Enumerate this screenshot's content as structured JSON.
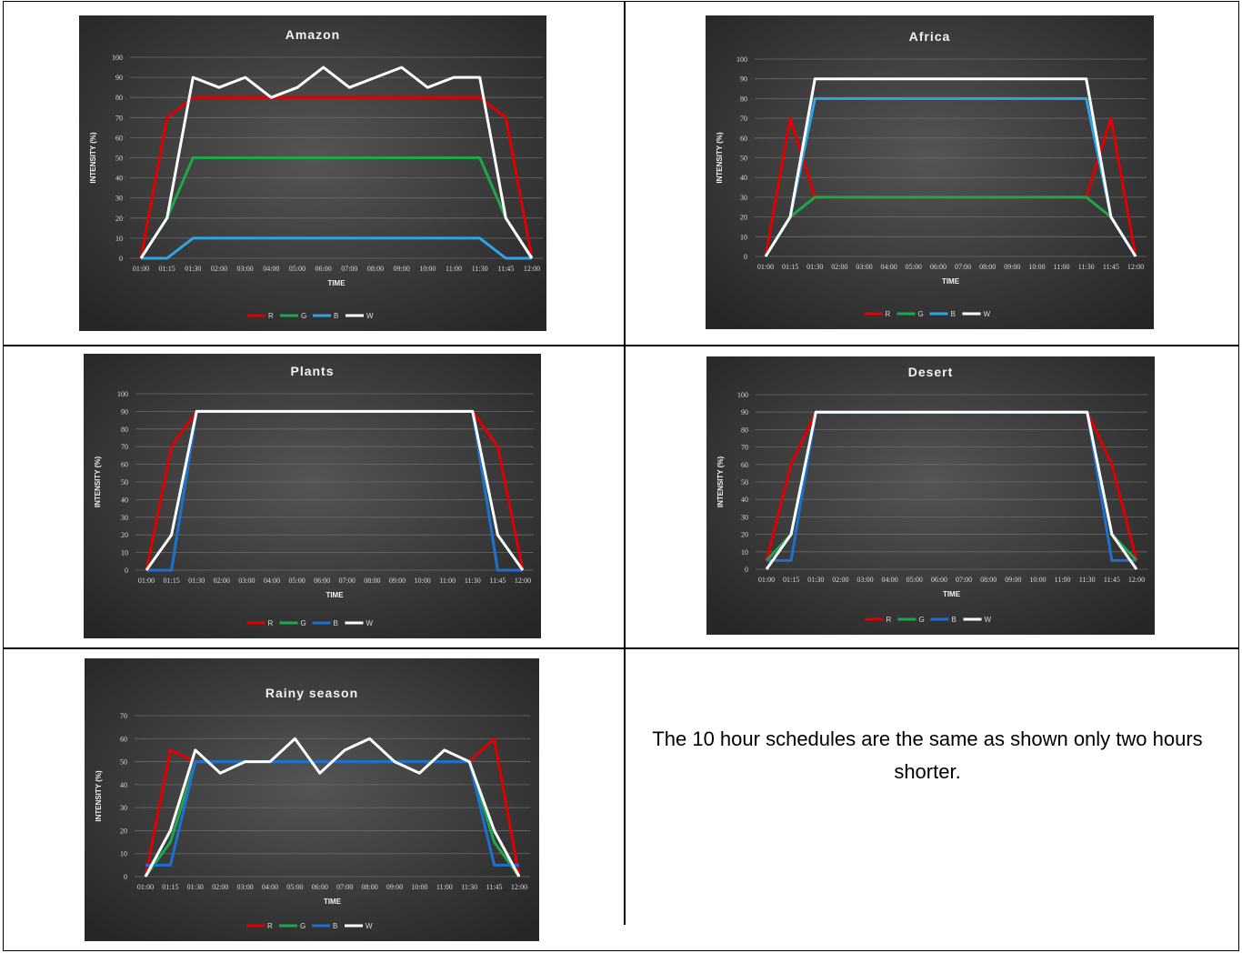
{
  "categories": [
    "01:00",
    "01:15",
    "01:30",
    "02:00",
    "03:00",
    "04:00",
    "05:00",
    "06:00",
    "07:00",
    "08:00",
    "09:00",
    "10:00",
    "11:00",
    "11:30",
    "11:45",
    "12:00"
  ],
  "colors": {
    "R": "#e00000",
    "G": "#1ea84a",
    "B": "#2ea6e6",
    "B_dark": "#1d6fd0",
    "W": "#ffffff",
    "bg": "#3a3a3a",
    "grid": "#6a6a6a",
    "text": "#d9d9d9"
  },
  "note": {
    "text": "The 10 hour schedules are the same as shown only two hours shorter."
  },
  "chart_data": [
    {
      "type": "line",
      "title": "Amazon",
      "xlabel": "TIME",
      "ylabel": "INTENSITY (%)",
      "ylim": [
        0,
        100
      ],
      "yticks": [
        0,
        10,
        20,
        30,
        40,
        50,
        60,
        70,
        80,
        90,
        100
      ],
      "legend": "bottom",
      "series": [
        {
          "name": "R",
          "color": "#e00000",
          "values": [
            0,
            70,
            80,
            80,
            80,
            80,
            80,
            80,
            80,
            80,
            80,
            80,
            80,
            80,
            70,
            0
          ]
        },
        {
          "name": "G",
          "color": "#1ea84a",
          "values": [
            0,
            20,
            50,
            50,
            50,
            50,
            50,
            50,
            50,
            50,
            50,
            50,
            50,
            50,
            20,
            0
          ]
        },
        {
          "name": "B",
          "color": "#2ea6e6",
          "values": [
            0,
            0,
            10,
            10,
            10,
            10,
            10,
            10,
            10,
            10,
            10,
            10,
            10,
            10,
            0,
            0
          ]
        },
        {
          "name": "W",
          "color": "#ffffff",
          "values": [
            0,
            20,
            90,
            85,
            90,
            80,
            85,
            95,
            85,
            90,
            95,
            85,
            90,
            90,
            20,
            0
          ]
        }
      ]
    },
    {
      "type": "line",
      "title": "Africa",
      "xlabel": "TIME",
      "ylabel": "INTENSITY (%)",
      "ylim": [
        0,
        100
      ],
      "yticks": [
        0,
        10,
        20,
        30,
        40,
        50,
        60,
        70,
        80,
        90,
        100
      ],
      "legend": "bottom",
      "series": [
        {
          "name": "R",
          "color": "#e00000",
          "values": [
            0,
            70,
            30,
            30,
            30,
            30,
            30,
            30,
            30,
            30,
            30,
            30,
            30,
            30,
            70,
            0
          ]
        },
        {
          "name": "G",
          "color": "#1ea84a",
          "values": [
            0,
            20,
            30,
            30,
            30,
            30,
            30,
            30,
            30,
            30,
            30,
            30,
            30,
            30,
            20,
            0
          ]
        },
        {
          "name": "B",
          "color": "#2ea6e6",
          "values": [
            0,
            20,
            80,
            80,
            80,
            80,
            80,
            80,
            80,
            80,
            80,
            80,
            80,
            80,
            20,
            0
          ]
        },
        {
          "name": "W",
          "color": "#ffffff",
          "values": [
            0,
            20,
            90,
            90,
            90,
            90,
            90,
            90,
            90,
            90,
            90,
            90,
            90,
            90,
            20,
            0
          ]
        }
      ]
    },
    {
      "type": "line",
      "title": "Plants",
      "xlabel": "TIME",
      "ylabel": "INTENSITY (%)",
      "ylim": [
        0,
        100
      ],
      "yticks": [
        0,
        10,
        20,
        30,
        40,
        50,
        60,
        70,
        80,
        90,
        100
      ],
      "legend": "bottom",
      "series": [
        {
          "name": "R",
          "color": "#e00000",
          "values": [
            0,
            70,
            90,
            90,
            90,
            90,
            90,
            90,
            90,
            90,
            90,
            90,
            90,
            90,
            70,
            0
          ]
        },
        {
          "name": "G",
          "color": "#1ea84a",
          "values": [
            0,
            0,
            90,
            90,
            90,
            90,
            90,
            90,
            90,
            90,
            90,
            90,
            90,
            90,
            0,
            0
          ]
        },
        {
          "name": "B",
          "color": "#1d6fd0",
          "values": [
            0,
            0,
            90,
            90,
            90,
            90,
            90,
            90,
            90,
            90,
            90,
            90,
            90,
            90,
            0,
            0
          ]
        },
        {
          "name": "W",
          "color": "#ffffff",
          "values": [
            0,
            20,
            90,
            90,
            90,
            90,
            90,
            90,
            90,
            90,
            90,
            90,
            90,
            90,
            20,
            0
          ]
        }
      ]
    },
    {
      "type": "line",
      "title": "Desert",
      "xlabel": "TIME",
      "ylabel": "INTENSITY (%)",
      "ylim": [
        0,
        100
      ],
      "yticks": [
        0,
        10,
        20,
        30,
        40,
        50,
        60,
        70,
        80,
        90,
        100
      ],
      "legend": "bottom",
      "series": [
        {
          "name": "R",
          "color": "#e00000",
          "values": [
            5,
            60,
            90,
            90,
            90,
            90,
            90,
            90,
            90,
            90,
            90,
            90,
            90,
            90,
            60,
            5
          ]
        },
        {
          "name": "G",
          "color": "#1ea84a",
          "values": [
            5,
            20,
            90,
            90,
            90,
            90,
            90,
            90,
            90,
            90,
            90,
            90,
            90,
            90,
            20,
            5
          ]
        },
        {
          "name": "B",
          "color": "#1d6fd0",
          "values": [
            5,
            5,
            90,
            90,
            90,
            90,
            90,
            90,
            90,
            90,
            90,
            90,
            90,
            90,
            5,
            5
          ]
        },
        {
          "name": "W",
          "color": "#ffffff",
          "values": [
            0,
            20,
            90,
            90,
            90,
            90,
            90,
            90,
            90,
            90,
            90,
            90,
            90,
            90,
            20,
            0
          ]
        }
      ]
    },
    {
      "type": "line",
      "title": "Rainy season",
      "xlabel": "TIME",
      "ylabel": "INTENSITY (%)",
      "ylim": [
        0,
        70
      ],
      "yticks": [
        0,
        10,
        20,
        30,
        40,
        50,
        60,
        70
      ],
      "legend": "bottom",
      "series": [
        {
          "name": "R",
          "color": "#e00000",
          "values": [
            0,
            55,
            50,
            50,
            50,
            50,
            50,
            50,
            50,
            50,
            50,
            50,
            50,
            50,
            60,
            0
          ]
        },
        {
          "name": "G",
          "color": "#1ea84a",
          "values": [
            0,
            15,
            50,
            50,
            50,
            50,
            50,
            50,
            50,
            50,
            50,
            50,
            50,
            50,
            15,
            0
          ]
        },
        {
          "name": "B",
          "color": "#1d6fd0",
          "values": [
            5,
            5,
            50,
            50,
            50,
            50,
            50,
            50,
            50,
            50,
            50,
            50,
            50,
            50,
            5,
            5
          ]
        },
        {
          "name": "W",
          "color": "#ffffff",
          "values": [
            0,
            20,
            55,
            45,
            50,
            50,
            60,
            45,
            55,
            60,
            50,
            45,
            55,
            50,
            20,
            0
          ]
        }
      ]
    }
  ]
}
